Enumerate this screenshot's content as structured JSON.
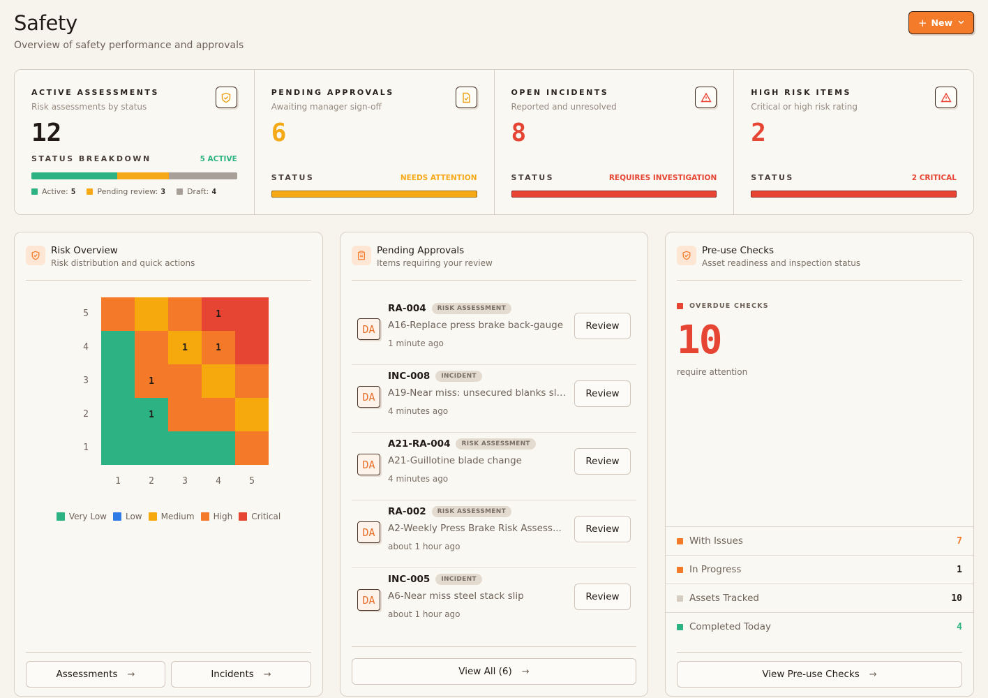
{
  "header": {
    "title": "Safety",
    "subtitle": "Overview of safety performance and approvals",
    "new_button": "New"
  },
  "stats": {
    "active": {
      "label": "ACTIVE ASSESSMENTS",
      "sub": "Risk assessments by status",
      "value": "12",
      "breakdown_label": "STATUS BREAKDOWN",
      "breakdown_status": "5 ACTIVE",
      "legend": [
        {
          "label": "Active:",
          "value": "5",
          "color": "#2db383"
        },
        {
          "label": "Pending review:",
          "value": "3",
          "color": "#f5a916"
        },
        {
          "label": "Draft:",
          "value": "4",
          "color": "#a89f98"
        }
      ]
    },
    "pending": {
      "label": "PENDING APPROVALS",
      "sub": "Awaiting manager sign-off",
      "value": "6",
      "status_label": "STATUS",
      "status": "NEEDS ATTENTION",
      "color": "#f5a916"
    },
    "incidents": {
      "label": "OPEN INCIDENTS",
      "sub": "Reported and unresolved",
      "value": "8",
      "status_label": "STATUS",
      "status": "REQUIRES INVESTIGATION",
      "color": "#e64534"
    },
    "high_risk": {
      "label": "HIGH RISK ITEMS",
      "sub": "Critical or high risk rating",
      "value": "2",
      "status_label": "STATUS",
      "status": "2 CRITICAL",
      "color": "#e64534"
    }
  },
  "risk": {
    "title": "Risk Overview",
    "subtitle": "Risk distribution and quick actions",
    "y_labels": [
      "5",
      "4",
      "3",
      "2",
      "1"
    ],
    "x_labels": [
      "1",
      "2",
      "3",
      "4",
      "5"
    ],
    "matrix": [
      [
        {
          "level": "high",
          "count": ""
        },
        {
          "level": "medium",
          "count": ""
        },
        {
          "level": "high",
          "count": ""
        },
        {
          "level": "critical",
          "count": "1"
        },
        {
          "level": "critical",
          "count": ""
        }
      ],
      [
        {
          "level": "very_low",
          "count": ""
        },
        {
          "level": "high",
          "count": ""
        },
        {
          "level": "medium",
          "count": "1"
        },
        {
          "level": "high",
          "count": "1"
        },
        {
          "level": "critical",
          "count": ""
        }
      ],
      [
        {
          "level": "very_low",
          "count": ""
        },
        {
          "level": "high",
          "count": "1"
        },
        {
          "level": "high",
          "count": ""
        },
        {
          "level": "medium",
          "count": ""
        },
        {
          "level": "high",
          "count": ""
        }
      ],
      [
        {
          "level": "very_low",
          "count": ""
        },
        {
          "level": "very_low",
          "count": "1"
        },
        {
          "level": "high",
          "count": ""
        },
        {
          "level": "high",
          "count": ""
        },
        {
          "level": "medium",
          "count": ""
        }
      ],
      [
        {
          "level": "very_low",
          "count": ""
        },
        {
          "level": "very_low",
          "count": ""
        },
        {
          "level": "very_low",
          "count": ""
        },
        {
          "level": "very_low",
          "count": ""
        },
        {
          "level": "high",
          "count": ""
        }
      ]
    ],
    "colors": {
      "very_low": "#2db383",
      "low": "#2f7be6",
      "medium": "#f5a90d",
      "high": "#f47a2a",
      "critical": "#e64534"
    },
    "legend": [
      {
        "label": "Very Low",
        "color": "#2db383"
      },
      {
        "label": "Low",
        "color": "#2f7be6"
      },
      {
        "label": "Medium",
        "color": "#f5a90d"
      },
      {
        "label": "High",
        "color": "#f47a2a"
      },
      {
        "label": "Critical",
        "color": "#e64534"
      }
    ],
    "assessments_button": "Assessments",
    "incidents_button": "Incidents"
  },
  "approvals": {
    "title": "Pending Approvals",
    "subtitle": "Items requiring your review",
    "review_label": "Review",
    "items": [
      {
        "id": "RA-004",
        "tag": "RISK ASSESSMENT",
        "desc": "A16-Replace press brake back-gauge",
        "time": "1 minute ago",
        "initials": "DA"
      },
      {
        "id": "INC-008",
        "tag": "INCIDENT",
        "desc": "A19-Near miss: unsecured blanks sli...",
        "time": "4 minutes ago",
        "initials": "DA"
      },
      {
        "id": "A21-RA-004",
        "tag": "RISK ASSESSMENT",
        "desc": "A21-Guillotine blade change",
        "time": "4 minutes ago",
        "initials": "DA"
      },
      {
        "id": "RA-002",
        "tag": "RISK ASSESSMENT",
        "desc": "A2-Weekly Press Brake Risk Assess...",
        "time": "about 1 hour ago",
        "initials": "DA"
      },
      {
        "id": "INC-005",
        "tag": "INCIDENT",
        "desc": "A6-Near miss steel stack slip",
        "time": "about 1 hour ago",
        "initials": "DA"
      }
    ],
    "view_all": "View All (6)"
  },
  "preuse": {
    "title": "Pre-use Checks",
    "subtitle": "Asset readiness and inspection status",
    "overdue_label": "OVERDUE CHECKS",
    "overdue_value": "10",
    "overdue_sub": "require attention",
    "rows": [
      {
        "label": "With Issues",
        "value": "7",
        "color": "#f47a2a",
        "value_color": "#f47a2a"
      },
      {
        "label": "In Progress",
        "value": "1",
        "color": "#f47a2a",
        "value_color": "#211a17"
      },
      {
        "label": "Assets Tracked",
        "value": "10",
        "color": "#d6cdc2",
        "value_color": "#211a17"
      },
      {
        "label": "Completed Today",
        "value": "4",
        "color": "#2db383",
        "value_color": "#2db383"
      }
    ],
    "view_button": "View Pre-use Checks"
  }
}
